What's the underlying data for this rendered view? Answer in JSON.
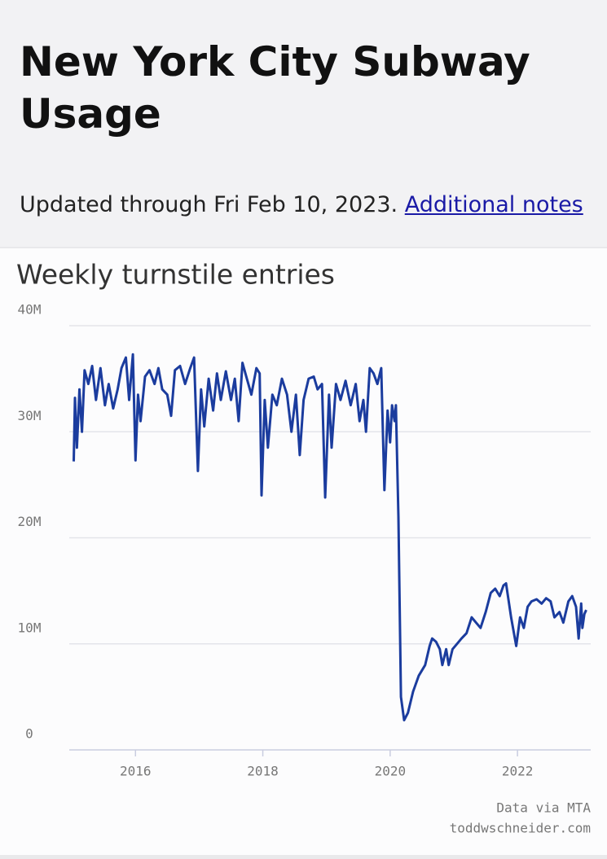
{
  "header": {
    "title": "New York City Subway Usage",
    "updated": "Updated through Fri Feb 10, 2023.",
    "link": "Additional notes"
  },
  "chart_data": {
    "type": "line",
    "title": "Weekly turnstile entries",
    "color": "#1b3c9e",
    "grid": true,
    "x": [
      2015.03,
      2015.05,
      2015.08,
      2015.12,
      2015.16,
      2015.2,
      2015.26,
      2015.32,
      2015.38,
      2015.45,
      2015.52,
      2015.58,
      2015.65,
      2015.72,
      2015.78,
      2015.85,
      2015.9,
      2015.96,
      2016.0,
      2016.04,
      2016.08,
      2016.15,
      2016.22,
      2016.3,
      2016.36,
      2016.42,
      2016.5,
      2016.56,
      2016.62,
      2016.7,
      2016.78,
      2016.86,
      2016.92,
      2016.98,
      2017.03,
      2017.08,
      2017.15,
      2017.22,
      2017.28,
      2017.34,
      2017.42,
      2017.5,
      2017.56,
      2017.62,
      2017.68,
      2017.75,
      2017.82,
      2017.9,
      2017.95,
      2017.98,
      2018.03,
      2018.08,
      2018.15,
      2018.22,
      2018.3,
      2018.38,
      2018.45,
      2018.52,
      2018.58,
      2018.64,
      2018.72,
      2018.8,
      2018.86,
      2018.93,
      2018.98,
      2019.04,
      2019.08,
      2019.15,
      2019.22,
      2019.3,
      2019.38,
      2019.46,
      2019.52,
      2019.58,
      2019.62,
      2019.68,
      2019.74,
      2019.8,
      2019.86,
      2019.91,
      2019.96,
      2020.0,
      2020.03,
      2020.07,
      2020.09,
      2020.13,
      2020.17,
      2020.22,
      2020.28,
      2020.36,
      2020.45,
      2020.55,
      2020.62,
      2020.66,
      2020.72,
      2020.78,
      2020.82,
      2020.88,
      2020.92,
      2020.98,
      2021.05,
      2021.12,
      2021.2,
      2021.28,
      2021.35,
      2021.42,
      2021.5,
      2021.58,
      2021.65,
      2021.72,
      2021.78,
      2021.82,
      2021.9,
      2021.98,
      2022.04,
      2022.1,
      2022.16,
      2022.22,
      2022.3,
      2022.38,
      2022.45,
      2022.52,
      2022.58,
      2022.66,
      2022.72,
      2022.8,
      2022.86,
      2022.92,
      2022.96,
      2023.0,
      2023.02,
      2023.05,
      2023.08
    ],
    "values": [
      27.2,
      33.2,
      28.5,
      34,
      30,
      35.8,
      34.5,
      36.2,
      33,
      36,
      32.5,
      34.5,
      32.2,
      34,
      36,
      37,
      33,
      37.3,
      27.3,
      33.5,
      31,
      35.2,
      35.8,
      34.5,
      36,
      34,
      33.5,
      31.5,
      35.8,
      36.2,
      34.5,
      36,
      37,
      26.3,
      34,
      30.5,
      35,
      32,
      35.5,
      33,
      35.7,
      33,
      35,
      31,
      36.5,
      35,
      33.5,
      36,
      35.5,
      24,
      33,
      28.5,
      33.5,
      32.5,
      35,
      33.5,
      30,
      33.5,
      27.8,
      33,
      35,
      35.2,
      34,
      34.5,
      23.8,
      33.5,
      28.5,
      34.5,
      33,
      34.8,
      32.5,
      34.5,
      31,
      33,
      30,
      36,
      35.5,
      34.5,
      36,
      24.5,
      32,
      29,
      32.5,
      31,
      32.5,
      22,
      5,
      2.8,
      3.5,
      5.5,
      7,
      8,
      9.8,
      10.5,
      10.2,
      9.5,
      8,
      9.5,
      8,
      9.5,
      10,
      10.5,
      11,
      12.5,
      12,
      11.5,
      13,
      14.8,
      15.2,
      14.5,
      15.5,
      15.7,
      12.5,
      9.8,
      12.5,
      11.5,
      13.5,
      14,
      14.2,
      13.8,
      14.3,
      14,
      12.5,
      13,
      12,
      14,
      14.5,
      13.5,
      10.5,
      13.8,
      11.5,
      12.8,
      13.2
    ],
    "xlim": [
      2014.96,
      2023.15
    ],
    "xticks": [
      2016,
      2018,
      2020,
      2022
    ],
    "ylim": [
      0,
      40
    ],
    "yticks": [
      0,
      {
        "value": 10,
        "label": "10M"
      },
      {
        "value": 20,
        "label": "20M"
      },
      {
        "value": 30,
        "label": "30M"
      },
      {
        "value": 40,
        "label": "40M"
      }
    ],
    "credits": [
      "Data via MTA",
      "toddwschneider.com"
    ]
  }
}
